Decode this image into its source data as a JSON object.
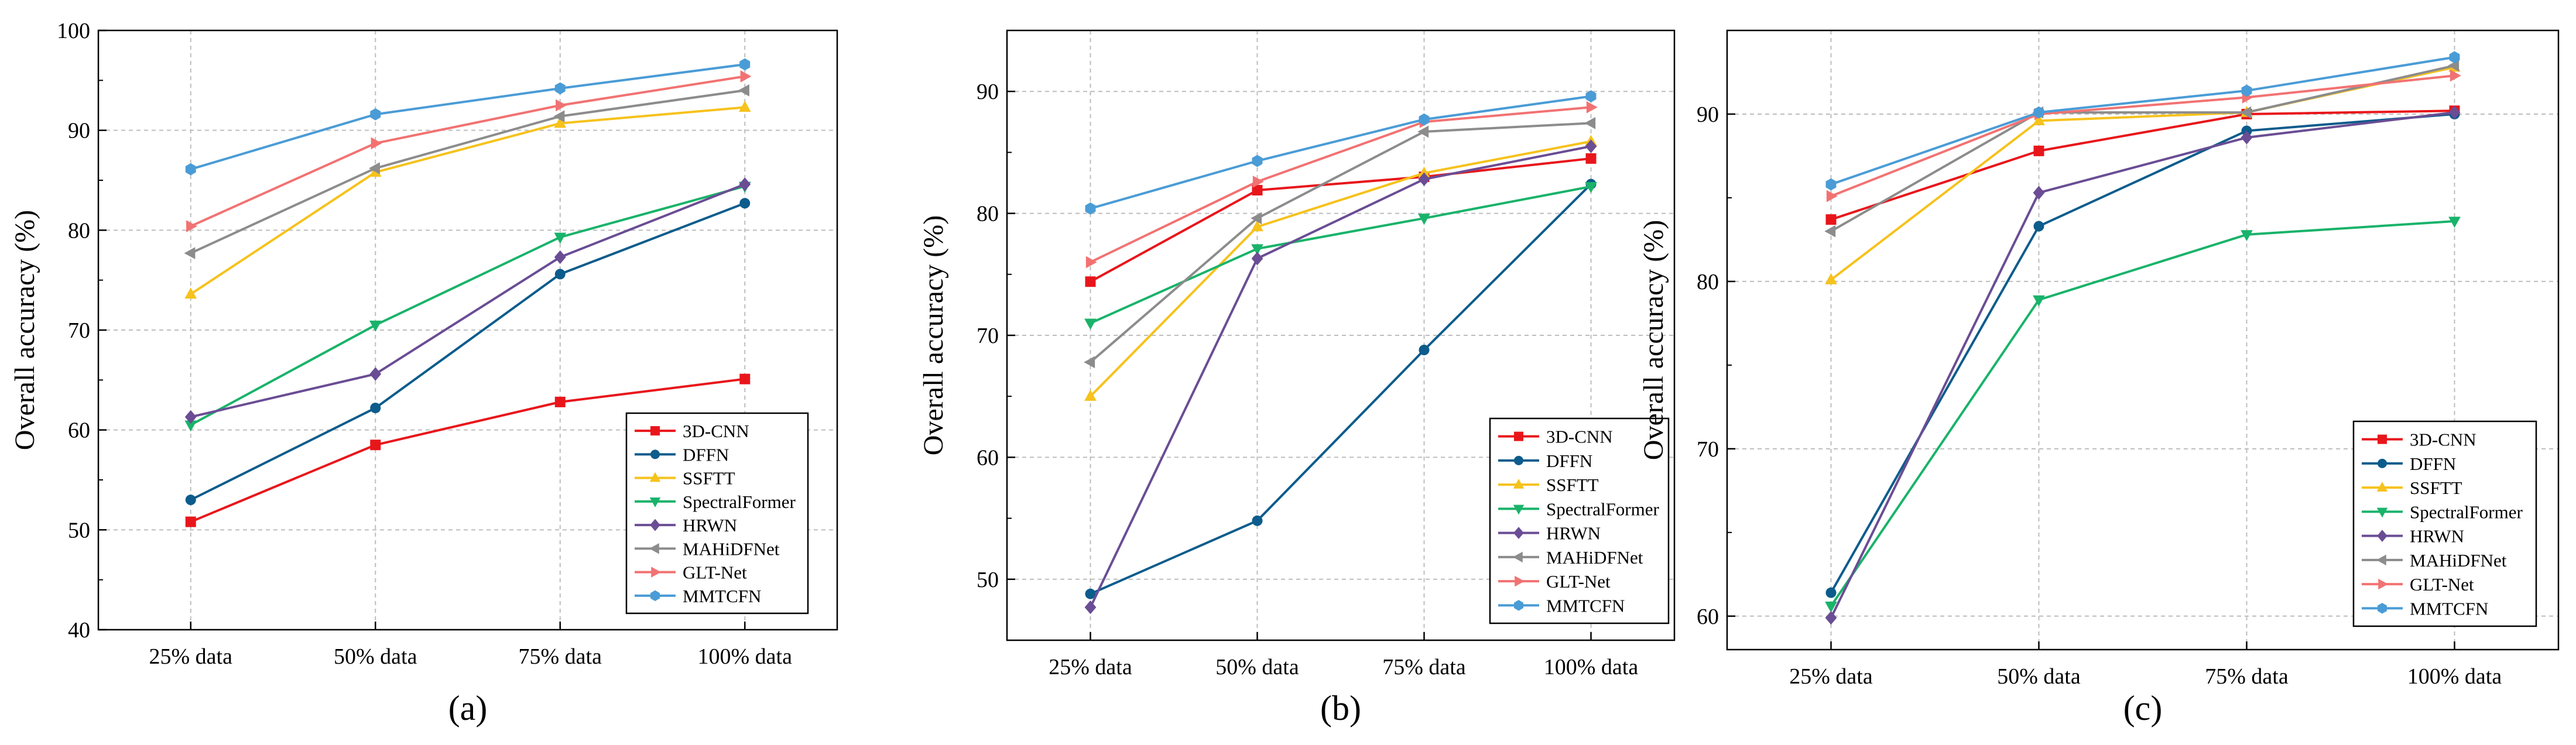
{
  "series_colors": {
    "3D-CNN": "#e8161b",
    "DFFN": "#0c5c8c",
    "SSFTT": "#f6c21c",
    "SpectralFormer": "#19b36a",
    "HRWN": "#6a4d94",
    "MAHiDFNet": "#8c8c8c",
    "GLT-Net": "#f27272",
    "MMTCFN": "#4a9cd6"
  },
  "series_markers": {
    "3D-CNN": "square",
    "DFFN": "circle",
    "SSFTT": "triangle-up",
    "SpectralFormer": "triangle-down",
    "HRWN": "diamond",
    "MAHiDFNet": "triangle-left",
    "GLT-Net": "triangle-right",
    "MMTCFN": "hexagon"
  },
  "chart_data": [
    {
      "type": "line",
      "panel_label": "(a)",
      "categories": [
        "25% data",
        "50% data",
        "75% data",
        "100% data"
      ],
      "ylabel": "Overall accuracy (%)",
      "xlabel": "",
      "ylim": [
        40,
        100
      ],
      "yticks": [
        40,
        50,
        60,
        70,
        80,
        90,
        100
      ],
      "grid": true,
      "legend_position": "bottom-right",
      "series": [
        {
          "name": "3D-CNN",
          "values": [
            50.8,
            58.5,
            62.8,
            65.1
          ]
        },
        {
          "name": "DFFN",
          "values": [
            53.0,
            62.2,
            75.6,
            82.7
          ]
        },
        {
          "name": "SSFTT",
          "values": [
            73.6,
            85.8,
            90.7,
            92.3
          ]
        },
        {
          "name": "SpectralFormer",
          "values": [
            60.5,
            70.5,
            79.3,
            84.4
          ]
        },
        {
          "name": "HRWN",
          "values": [
            61.3,
            65.6,
            77.3,
            84.6
          ]
        },
        {
          "name": "MAHiDFNet",
          "values": [
            77.7,
            86.2,
            91.4,
            94.0
          ]
        },
        {
          "name": "GLT-Net",
          "values": [
            80.4,
            88.7,
            92.5,
            95.4
          ]
        },
        {
          "name": "MMTCFN",
          "values": [
            86.1,
            91.6,
            94.2,
            96.6
          ]
        }
      ]
    },
    {
      "type": "line",
      "panel_label": "(b)",
      "categories": [
        "25% data",
        "50% data",
        "75% data",
        "100% data"
      ],
      "ylabel": "Overall accuracy (%)",
      "xlabel": "",
      "ylim": [
        45,
        95
      ],
      "yticks": [
        50,
        60,
        70,
        80,
        90
      ],
      "grid": true,
      "legend_position": "bottom-right",
      "series": [
        {
          "name": "3D-CNN",
          "values": [
            74.4,
            81.9,
            83.0,
            84.5
          ]
        },
        {
          "name": "DFFN",
          "values": [
            48.8,
            54.8,
            68.8,
            82.4
          ]
        },
        {
          "name": "SSFTT",
          "values": [
            65.0,
            78.9,
            83.3,
            85.9
          ]
        },
        {
          "name": "SpectralFormer",
          "values": [
            71.0,
            77.1,
            79.6,
            82.2
          ]
        },
        {
          "name": "HRWN",
          "values": [
            47.7,
            76.3,
            82.8,
            85.5
          ]
        },
        {
          "name": "MAHiDFNet",
          "values": [
            67.8,
            79.6,
            86.7,
            87.4
          ]
        },
        {
          "name": "GLT-Net",
          "values": [
            76.0,
            82.6,
            87.5,
            88.7
          ]
        },
        {
          "name": "MMTCFN",
          "values": [
            80.4,
            84.3,
            87.7,
            89.6
          ]
        }
      ]
    },
    {
      "type": "line",
      "panel_label": "(c)",
      "categories": [
        "25% data",
        "50% data",
        "75% data",
        "100% data"
      ],
      "ylabel": "Overall accuracy (%)",
      "xlabel": "",
      "ylim": [
        58,
        95
      ],
      "yticks": [
        60,
        70,
        80,
        90
      ],
      "grid": true,
      "legend_position": "bottom-right",
      "series": [
        {
          "name": "3D-CNN",
          "values": [
            83.7,
            87.8,
            90.0,
            90.2
          ]
        },
        {
          "name": "DFFN",
          "values": [
            61.4,
            83.3,
            89.0,
            90.0
          ]
        },
        {
          "name": "SSFTT",
          "values": [
            80.1,
            89.6,
            90.1,
            92.8
          ]
        },
        {
          "name": "SpectralFormer",
          "values": [
            60.6,
            78.9,
            82.8,
            83.6
          ]
        },
        {
          "name": "HRWN",
          "values": [
            59.9,
            85.3,
            88.6,
            90.1
          ]
        },
        {
          "name": "MAHiDFNet",
          "values": [
            83.0,
            90.1,
            90.1,
            92.9
          ]
        },
        {
          "name": "GLT-Net",
          "values": [
            85.1,
            90.0,
            91.0,
            92.3
          ]
        },
        {
          "name": "MMTCFN",
          "values": [
            85.8,
            90.1,
            91.4,
            93.4
          ]
        }
      ]
    }
  ]
}
